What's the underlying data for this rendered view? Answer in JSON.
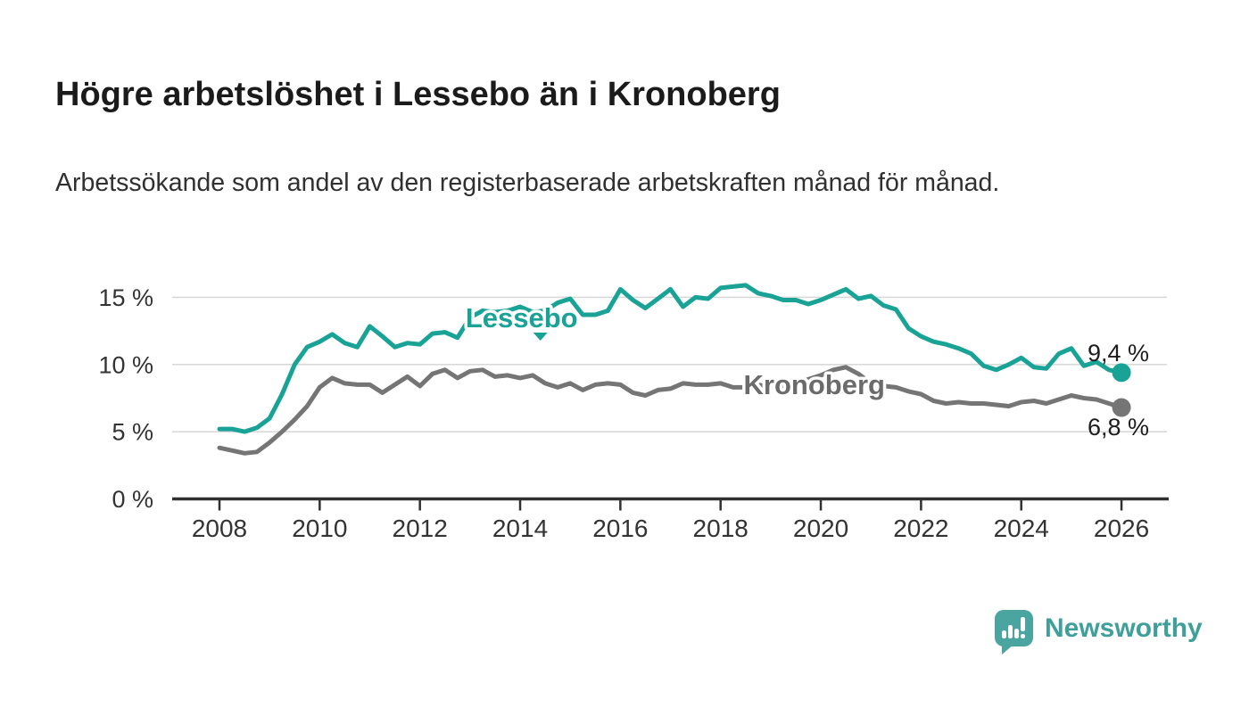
{
  "header": {
    "title": "Högre arbetslöshet i Lessebo än i Kronoberg",
    "subtitle": "Arbetssökande som andel av den registerbaserade arbetskraften månad för månad."
  },
  "chart_data": {
    "type": "line",
    "title": "Högre arbetslöshet i Lessebo än i Kronoberg",
    "subtitle": "Arbetssökande som andel av den registerbaserade arbetskraften månad för månad.",
    "grid": "horizontal",
    "x_axis": {
      "range": [
        2008,
        2026
      ],
      "ticks": [
        2008,
        2010,
        2012,
        2014,
        2016,
        2018,
        2020,
        2022,
        2024,
        2026
      ],
      "tick_labels": [
        "2008",
        "2010",
        "2012",
        "2014",
        "2016",
        "2018",
        "2020",
        "2022",
        "2024",
        "2026"
      ]
    },
    "y_axis": {
      "unit": "%",
      "range": [
        0,
        16.5
      ],
      "ticks": [
        0,
        5,
        10,
        15
      ],
      "tick_labels": [
        "0 %",
        "5 %",
        "10 %",
        "15 %"
      ]
    },
    "style": {
      "grid_color": "#d9d9d9",
      "axis_color": "#303030",
      "tick_text_color": "#333333",
      "value_label_color": "#1d1d1d"
    },
    "x": [
      2008.0,
      2008.25,
      2008.5,
      2008.75,
      2009.0,
      2009.25,
      2009.5,
      2009.75,
      2010.0,
      2010.25,
      2010.5,
      2010.75,
      2011.0,
      2011.25,
      2011.5,
      2011.75,
      2012.0,
      2012.25,
      2012.5,
      2012.75,
      2013.0,
      2013.25,
      2013.5,
      2013.75,
      2014.0,
      2014.25,
      2014.5,
      2014.75,
      2015.0,
      2015.25,
      2015.5,
      2015.75,
      2016.0,
      2016.25,
      2016.5,
      2016.75,
      2017.0,
      2017.25,
      2017.5,
      2017.75,
      2018.0,
      2018.25,
      2018.5,
      2018.75,
      2019.0,
      2019.25,
      2019.5,
      2019.75,
      2020.0,
      2020.25,
      2020.5,
      2020.75,
      2021.0,
      2021.25,
      2021.5,
      2021.75,
      2022.0,
      2022.25,
      2022.5,
      2022.75,
      2023.0,
      2023.25,
      2023.5,
      2023.75,
      2024.0,
      2024.25,
      2024.5,
      2024.75,
      2025.0,
      2025.25,
      2025.5,
      2025.75,
      2026.0
    ],
    "series": [
      {
        "name": "Kronoberg",
        "color": "#757575",
        "label_color": "#6b6b6b",
        "label_at": {
          "x": 2019.87,
          "y": 8.52
        },
        "label_pointer": false,
        "end_value": 6.8,
        "end_label": "6,8 %",
        "end_label_position": "below",
        "values": [
          3.8,
          3.6,
          3.4,
          3.5,
          4.2,
          5.0,
          5.9,
          6.9,
          8.3,
          9.0,
          8.6,
          8.5,
          8.5,
          7.9,
          8.5,
          9.1,
          8.4,
          9.3,
          9.6,
          9.0,
          9.5,
          9.6,
          9.1,
          9.2,
          9.0,
          9.2,
          8.6,
          8.3,
          8.6,
          8.1,
          8.5,
          8.6,
          8.5,
          7.9,
          7.7,
          8.1,
          8.2,
          8.6,
          8.5,
          8.5,
          8.6,
          8.3,
          8.3,
          8.5,
          8.3,
          8.4,
          8.6,
          8.9,
          9.2,
          9.6,
          9.8,
          9.3,
          8.6,
          8.4,
          8.3,
          8.0,
          7.8,
          7.3,
          7.1,
          7.2,
          7.1,
          7.1,
          7.0,
          6.9,
          7.2,
          7.3,
          7.1,
          7.4,
          7.7,
          7.5,
          7.4,
          7.1,
          6.8
        ]
      },
      {
        "name": "Lessebo",
        "color": "#19a296",
        "label_color": "#19a296",
        "label_at": {
          "x": 2014.03,
          "y": 13.5
        },
        "label_pointer": true,
        "end_value": 9.4,
        "end_label": "9,4 %",
        "end_label_position": "above",
        "values": [
          5.2,
          5.2,
          5.0,
          5.3,
          6.0,
          7.8,
          10.0,
          11.3,
          11.7,
          12.25,
          11.6,
          11.3,
          12.85,
          12.1,
          11.3,
          11.6,
          11.5,
          12.3,
          12.4,
          12.0,
          13.5,
          14.0,
          13.9,
          14.0,
          14.3,
          13.9,
          14.0,
          14.6,
          14.9,
          13.7,
          13.7,
          14.0,
          15.6,
          14.8,
          14.2,
          14.9,
          15.6,
          14.3,
          15.0,
          14.9,
          15.7,
          15.8,
          15.9,
          15.3,
          15.1,
          14.8,
          14.8,
          14.5,
          14.8,
          15.2,
          15.6,
          14.9,
          15.1,
          14.4,
          14.1,
          12.7,
          12.1,
          11.7,
          11.5,
          11.2,
          10.8,
          9.9,
          9.6,
          10.0,
          10.5,
          9.8,
          9.7,
          10.8,
          11.2,
          9.9,
          10.2,
          9.6,
          9.4
        ]
      }
    ]
  },
  "footer": {
    "brand": "Newsworthy",
    "brand_color": "#3f9f9b",
    "logo_icon": "newsworthy-speech-bubble-bar-chart-icon"
  }
}
